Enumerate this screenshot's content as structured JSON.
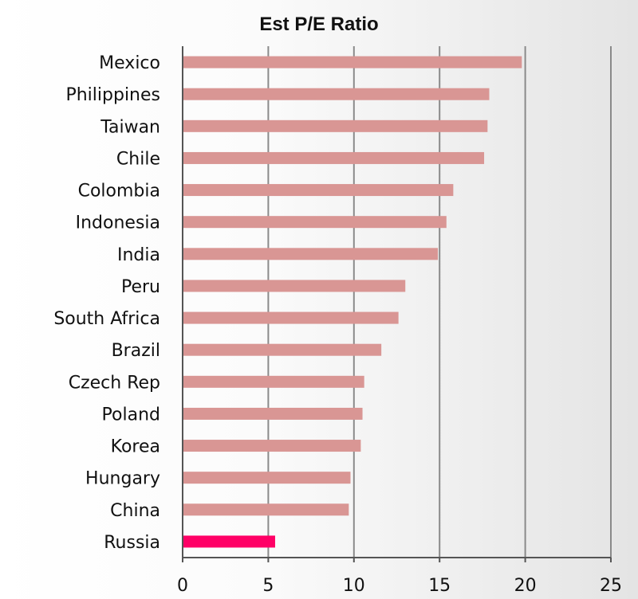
{
  "chart_data": {
    "type": "bar",
    "orientation": "horizontal",
    "title": "Est P/E Ratio",
    "categories": [
      "Mexico",
      "Philippines",
      "Taiwan",
      "Chile",
      "Colombia",
      "Indonesia",
      "India",
      "Peru",
      "South Africa",
      "Brazil",
      "Czech Rep",
      "Poland",
      "Korea",
      "Hungary",
      "China",
      "Russia"
    ],
    "values": [
      19.8,
      17.9,
      17.8,
      17.6,
      15.8,
      15.4,
      14.9,
      13.0,
      12.6,
      11.6,
      10.6,
      10.5,
      10.4,
      9.8,
      9.7,
      5.4
    ],
    "xlim": [
      0,
      25
    ],
    "xticks": [
      0,
      5,
      10,
      15,
      20,
      25
    ],
    "grid": "vertical",
    "colors": {
      "bar": "#d99694",
      "highlight": "#ff0066",
      "grid": "#8a8a8a",
      "axis": "#555555"
    },
    "highlight_category": "Russia"
  }
}
